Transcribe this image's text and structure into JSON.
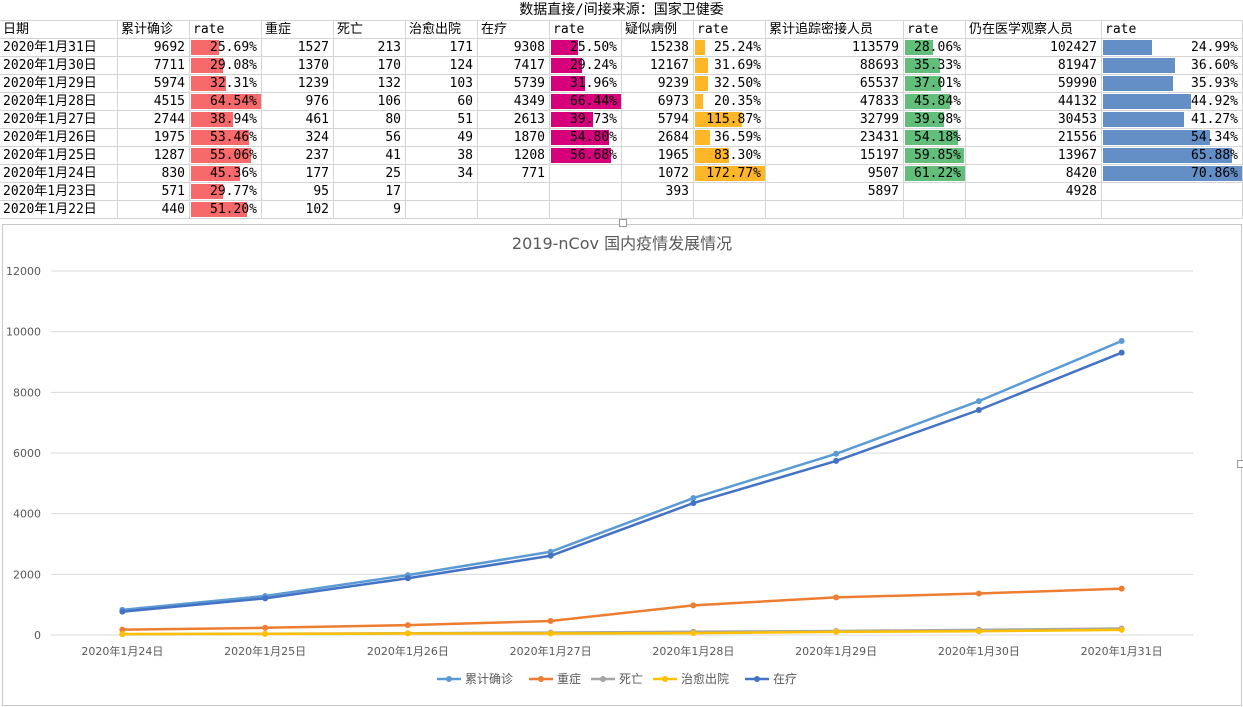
{
  "sheet": {
    "title": "数据直接/间接来源：国家卫健委",
    "headers": [
      "日期",
      "累计确诊",
      "rate",
      "重症",
      "死亡",
      "治愈出院",
      "在疗",
      "rate",
      "疑似病例",
      "rate",
      "累计追踪密接人员",
      "rate",
      "仍在医学观察人员",
      "rate"
    ],
    "rows": [
      [
        "2020年1月31日",
        "9692",
        "25.69%",
        "1527",
        "213",
        "171",
        "9308",
        "25.50%",
        "15238",
        "25.24%",
        "113579",
        "28.06%",
        "102427",
        "24.99%"
      ],
      [
        "2020年1月30日",
        "7711",
        "29.08%",
        "1370",
        "170",
        "124",
        "7417",
        "29.24%",
        "12167",
        "31.69%",
        "88693",
        "35.33%",
        "81947",
        "36.60%"
      ],
      [
        "2020年1月29日",
        "5974",
        "32.31%",
        "1239",
        "132",
        "103",
        "5739",
        "31.96%",
        "9239",
        "32.50%",
        "65537",
        "37.01%",
        "59990",
        "35.93%"
      ],
      [
        "2020年1月28日",
        "4515",
        "64.54%",
        "976",
        "106",
        "60",
        "4349",
        "66.44%",
        "6973",
        "20.35%",
        "47833",
        "45.84%",
        "44132",
        "44.92%"
      ],
      [
        "2020年1月27日",
        "2744",
        "38.94%",
        "461",
        "80",
        "51",
        "2613",
        "39.73%",
        "5794",
        "115.87%",
        "32799",
        "39.98%",
        "30453",
        "41.27%"
      ],
      [
        "2020年1月26日",
        "1975",
        "53.46%",
        "324",
        "56",
        "49",
        "1870",
        "54.80%",
        "2684",
        "36.59%",
        "23431",
        "54.18%",
        "21556",
        "54.34%"
      ],
      [
        "2020年1月25日",
        "1287",
        "55.06%",
        "237",
        "41",
        "38",
        "1208",
        "56.68%",
        "1965",
        "83.30%",
        "15197",
        "59.85%",
        "13967",
        "65.88%"
      ],
      [
        "2020年1月24日",
        "830",
        "45.36%",
        "177",
        "25",
        "34",
        "771",
        "",
        "1072",
        "172.77%",
        "9507",
        "61.22%",
        "8420",
        "70.86%"
      ],
      [
        "2020年1月23日",
        "571",
        "29.77%",
        "95",
        "17",
        "",
        "",
        "",
        "393",
        "",
        "5897",
        "",
        "4928",
        ""
      ],
      [
        "2020年1月22日",
        "440",
        "51.20%",
        "102",
        "9",
        "",
        "",
        "",
        "",
        "",
        "",
        "",
        "",
        ""
      ]
    ],
    "colors": {
      "confirmed_rate": "#f8696b",
      "treatment_rate": "#d6007b",
      "suspected_rate": "#ffb628",
      "tracked_rate": "#63be7b",
      "observed_rate": "#638ec6"
    }
  },
  "chart_data": {
    "type": "line",
    "title": "2019-nCov 国内疫情发展情况",
    "categories": [
      "2020年1月24日",
      "2020年1月25日",
      "2020年1月26日",
      "2020年1月27日",
      "2020年1月28日",
      "2020年1月29日",
      "2020年1月30日",
      "2020年1月31日"
    ],
    "ylim": [
      0,
      12000
    ],
    "yticks": [
      0,
      2000,
      4000,
      6000,
      8000,
      10000,
      12000
    ],
    "grid": true,
    "legend_position": "bottom",
    "series": [
      {
        "name": "累计确诊",
        "color": "#5b9bd5",
        "values": [
          830,
          1287,
          1975,
          2744,
          4515,
          5974,
          7711,
          9692
        ]
      },
      {
        "name": "重症",
        "color": "#ed7d31",
        "values": [
          177,
          237,
          324,
          461,
          976,
          1239,
          1370,
          1527
        ]
      },
      {
        "name": "死亡",
        "color": "#a5a5a5",
        "values": [
          25,
          41,
          56,
          80,
          106,
          132,
          170,
          213
        ]
      },
      {
        "name": "治愈出院",
        "color": "#ffc000",
        "values": [
          34,
          38,
          49,
          51,
          60,
          103,
          124,
          171
        ]
      },
      {
        "name": "在疗",
        "color": "#4472c4",
        "values": [
          771,
          1208,
          1870,
          2613,
          4349,
          5739,
          7417,
          9308
        ]
      }
    ]
  }
}
